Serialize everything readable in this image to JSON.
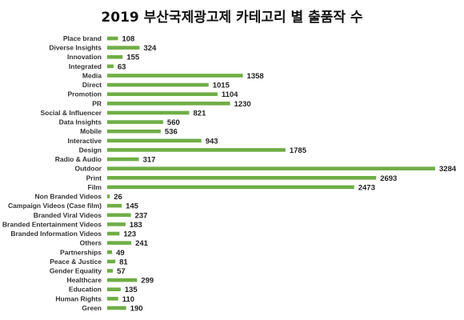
{
  "chart_data": {
    "type": "bar",
    "orientation": "horizontal",
    "title": "2019 부산국제광고제 카테고리 별 출품작 수",
    "xlabel": "",
    "ylabel": "",
    "grid": false,
    "bar_color": "#70AD47",
    "categories": [
      "Place brand",
      "Diverse Insights",
      "Innovation",
      "Integrated",
      "Media",
      "Direct",
      "Promotion",
      "PR",
      "Social & Influencer",
      "Data Insights",
      "Mobile",
      "Interactive",
      "Design",
      "Radio & Audio",
      "Outdoor",
      "Print",
      "Film",
      "Non Branded Videos",
      "Campaign Videos (Case film)",
      "Branded Viral Videos",
      "Branded Entertainment Videos",
      "Branded Information Videos",
      "Others",
      "Partnerships",
      "Peace & Justice",
      "Gender Equality",
      "Healthcare",
      "Education",
      "Human Rights",
      "Green"
    ],
    "values": [
      108,
      324,
      155,
      63,
      1358,
      1015,
      1104,
      1230,
      821,
      560,
      536,
      943,
      1785,
      317,
      3284,
      2693,
      2473,
      26,
      145,
      237,
      183,
      123,
      241,
      49,
      81,
      57,
      299,
      135,
      110,
      190
    ],
    "xlim": [
      0,
      3284
    ]
  }
}
